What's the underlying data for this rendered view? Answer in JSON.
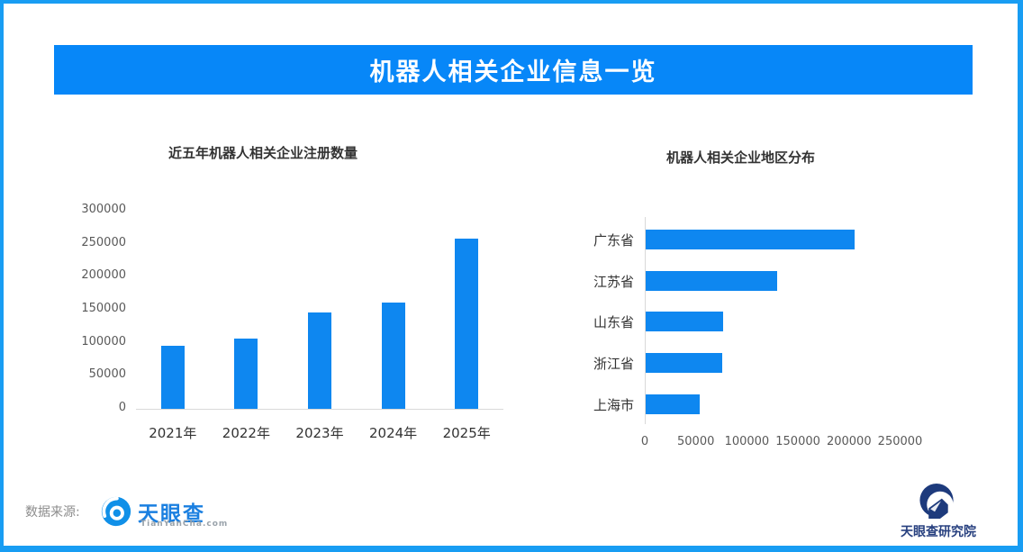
{
  "page": {
    "border_color": "#189df3",
    "background": "#ffffff",
    "accent_blue": "#0e87f0"
  },
  "header": {
    "title": "机器人相关企业信息一览"
  },
  "chart_data": [
    {
      "type": "bar",
      "orientation": "vertical",
      "title": "近五年机器人相关企业注册数量",
      "categories": [
        "2021年",
        "2022年",
        "2023年",
        "2024年",
        "2025年"
      ],
      "values": [
        95000,
        106000,
        146000,
        161000,
        258000
      ],
      "xlabel": "",
      "ylabel": "",
      "ylim": [
        0,
        300000
      ],
      "ytick_step": 50000,
      "ytick_labels": [
        "0",
        "50000",
        "100000",
        "150000",
        "200000",
        "250000",
        "300000"
      ],
      "bar_color": "#0e87f0",
      "grid": false,
      "legend": false
    },
    {
      "type": "bar",
      "orientation": "horizontal",
      "title": "机器人相关企业地区分布",
      "categories": [
        "广东省",
        "江苏省",
        "山东省",
        "浙江省",
        "上海市"
      ],
      "values": [
        205000,
        129000,
        76000,
        75000,
        53000
      ],
      "xlabel": "",
      "ylabel": "",
      "xlim": [
        0,
        250000
      ],
      "xtick_step": 50000,
      "xtick_labels": [
        "0",
        "50000",
        "100000",
        "150000",
        "200000",
        "250000"
      ],
      "bar_color": "#0e87f0",
      "grid": false,
      "legend": false
    }
  ],
  "footer": {
    "source_label": "数据来源:",
    "tianyancha_logo": {
      "text": "天眼查",
      "subtext": "TianYanCha.com"
    },
    "research_logo": {
      "text": "天眼查研究院"
    }
  }
}
